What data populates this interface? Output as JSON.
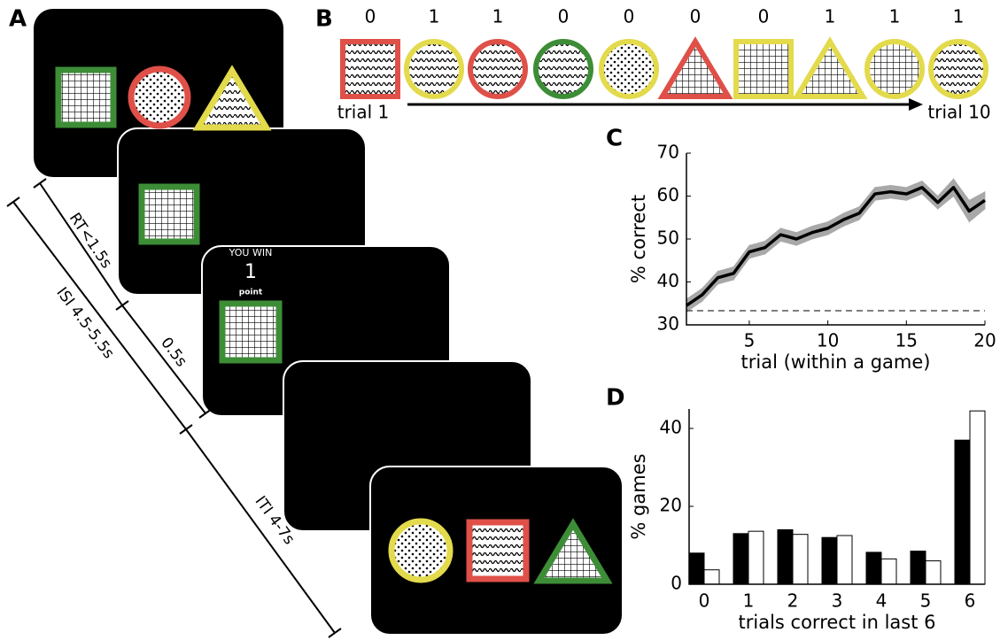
{
  "panel_labels": [
    "A",
    "B",
    "C",
    "D"
  ],
  "panel_a": {
    "win_title": "YOU WIN",
    "win_points": "1",
    "win_unit": "point",
    "timings": [
      "RT<1.5s",
      "0.5s",
      "ISI 4.5-5.5s",
      "ITI 4-7s"
    ]
  },
  "panel_b": {
    "outcomes": [
      0,
      1,
      1,
      0,
      0,
      0,
      0,
      1,
      1,
      1
    ],
    "start_label": "trial 1",
    "end_label": "trial 10"
  },
  "chart_data": [
    {
      "type": "line",
      "x": [
        1,
        2,
        3,
        4,
        5,
        6,
        7,
        8,
        9,
        10,
        11,
        12,
        13,
        14,
        15,
        16,
        17,
        18,
        19,
        20
      ],
      "series": [
        {
          "color": "#000000",
          "band_color": "#a8a8a8",
          "values": [
            34.5,
            37,
            41,
            42,
            47,
            48,
            51,
            50,
            51.5,
            52.5,
            54.5,
            56,
            60.5,
            61,
            60.5,
            62,
            58.5,
            62,
            56.5,
            59
          ],
          "errors": [
            1.5,
            1.5,
            1.5,
            1.5,
            1.5,
            1.5,
            1.5,
            1.5,
            1.5,
            1.5,
            1.5,
            1.5,
            1.5,
            1.5,
            1.5,
            1.5,
            1.5,
            2,
            2.5,
            2
          ]
        }
      ],
      "xlim": [
        1,
        20
      ],
      "xticks": [
        5,
        10,
        15,
        20
      ],
      "ylim": [
        30,
        70
      ],
      "yticks": [
        30,
        40,
        50,
        60,
        70
      ],
      "reference_line": 33.3,
      "x_label": "trial (within a game)",
      "y_label": "% correct"
    },
    {
      "type": "bar",
      "categories": [
        "0",
        "1",
        "2",
        "3",
        "4",
        "5",
        "6"
      ],
      "series": [
        {
          "color": "#000000",
          "values": [
            8,
            13,
            14,
            12,
            8.2,
            8.5,
            37
          ]
        },
        {
          "color": "#ffffff",
          "values": [
            3.7,
            13.6,
            12.8,
            12.5,
            6.5,
            6,
            44.5
          ]
        }
      ],
      "ylim": [
        0,
        45
      ],
      "yticks": [
        0,
        20,
        40
      ],
      "x_label": "trials correct in last 6",
      "y_label": "% games"
    }
  ]
}
